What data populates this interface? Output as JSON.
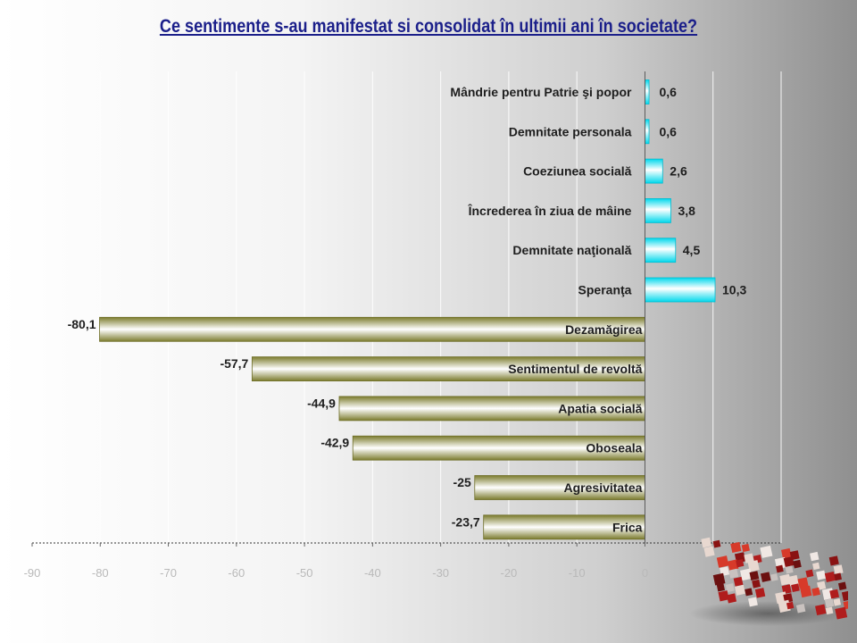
{
  "chart_data": {
    "type": "bar",
    "orientation": "horizontal",
    "title": "Ce sentimente  s-au manifestat  si consolidat  în ultimii  ani în societate?",
    "categories": [
      "Mândrie pentru Patrie şi popor",
      "Demnitate personala",
      "Coeziunea socială",
      "Încrederea în ziua de mâine",
      "Demnitate naţională",
      "Speranţa",
      "Dezamăgirea",
      "Sentimentul de revoltă",
      "Apatia socială",
      "Oboseala",
      "Agresivitatea",
      "Frica"
    ],
    "values": [
      0.6,
      0.6,
      2.6,
      3.8,
      4.5,
      10.3,
      -80.1,
      -57.7,
      -44.9,
      -42.9,
      -25,
      -23.7
    ],
    "value_labels": [
      "0,6",
      "0,6",
      "2,6",
      "3,8",
      "4,5",
      "10,3",
      "-80,1",
      "-57,7",
      "-44,9",
      "-42,9",
      "-25",
      "-23,7"
    ],
    "xlim": [
      -90,
      20
    ],
    "xticks": [
      -90,
      -80,
      -70,
      -60,
      -50,
      -40,
      -30,
      -20,
      -10,
      0
    ],
    "xtick_labels": [
      "-90",
      "-80",
      "-70",
      "-60",
      "-50",
      "-40",
      "-30",
      "-20",
      "-10",
      "0"
    ],
    "grid": true,
    "legend": "none",
    "colors": {
      "positive": "#00e0f0",
      "negative": "#8a8a3a",
      "title": "#1b1f8a"
    }
  }
}
